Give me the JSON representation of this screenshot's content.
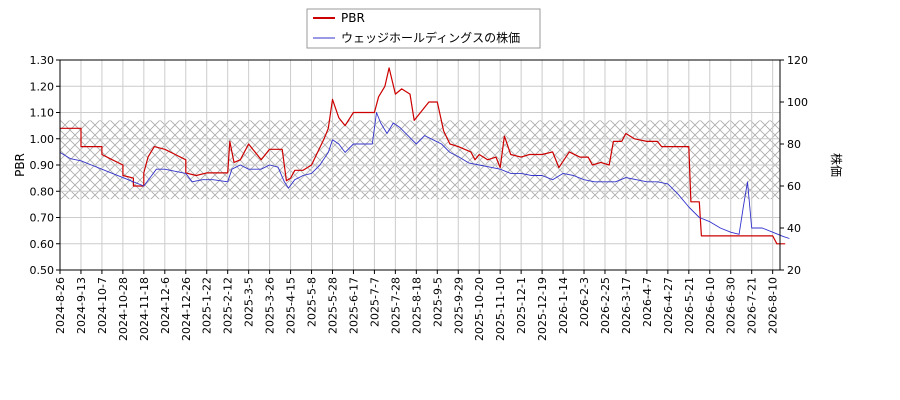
{
  "chart_data": {
    "type": "line",
    "legend": {
      "placement": "top-center",
      "entries": [
        {
          "name": "PBR",
          "color": "#cc0000"
        },
        {
          "name": "ウェッジホールディングスの株価",
          "color": "#3333cc"
        }
      ]
    },
    "y_left": {
      "label": "PBR",
      "ylim": [
        0.5,
        1.3
      ],
      "ticks": [
        "0.50",
        "0.60",
        "0.70",
        "0.80",
        "0.90",
        "1.00",
        "1.10",
        "1.20",
        "1.30"
      ]
    },
    "y_right": {
      "label": "株価",
      "ylim": [
        20,
        120
      ],
      "ticks": [
        "20",
        "40",
        "60",
        "80",
        "100",
        "120"
      ]
    },
    "x_ticks": [
      "2024-8-26",
      "2024-9-13",
      "2024-10-7",
      "2024-10-28",
      "2024-11-18",
      "2024-12-6",
      "2024-12-26",
      "2025-1-22",
      "2025-2-12",
      "2025-3-5",
      "2025-3-26",
      "2025-4-15",
      "2025-5-8",
      "2025-5-28",
      "2025-6-17",
      "2025-7-7",
      "2025-7-28",
      "2025-8-18",
      "2025-9-5",
      "2025-9-29",
      "2025-10-20",
      "2025-11-10",
      "2025-12-1",
      "2025-12-19",
      "2026-1-14",
      "2026-2-3",
      "2026-2-25",
      "2026-3-17",
      "2026-4-7",
      "2026-4-27",
      "2026-5-21",
      "2026-6-10",
      "2026-6-30",
      "2026-7-21",
      "2026-8-10"
    ],
    "grid": true,
    "band": {
      "axis": "left",
      "range": [
        0.77,
        1.07
      ],
      "pattern": "crosshatch"
    },
    "series": [
      {
        "name": "PBR",
        "axis": "left",
        "color": "#cc0000",
        "points": [
          [
            0,
            1.04
          ],
          [
            1,
            1.04
          ],
          [
            1,
            0.97
          ],
          [
            2,
            0.97
          ],
          [
            2,
            0.94
          ],
          [
            2.5,
            0.92
          ],
          [
            3,
            0.9
          ],
          [
            3,
            0.86
          ],
          [
            3.5,
            0.85
          ],
          [
            3.5,
            0.82
          ],
          [
            4,
            0.82
          ],
          [
            4,
            0.87
          ],
          [
            4.2,
            0.93
          ],
          [
            4.5,
            0.97
          ],
          [
            5,
            0.96
          ],
          [
            5.5,
            0.94
          ],
          [
            6,
            0.92
          ],
          [
            6,
            0.87
          ],
          [
            6.5,
            0.86
          ],
          [
            7,
            0.87
          ],
          [
            7.5,
            0.87
          ],
          [
            8,
            0.87
          ],
          [
            8.1,
            0.99
          ],
          [
            8.3,
            0.91
          ],
          [
            8.6,
            0.92
          ],
          [
            9,
            0.98
          ],
          [
            9.6,
            0.92
          ],
          [
            10,
            0.96
          ],
          [
            10.6,
            0.96
          ],
          [
            10.8,
            0.84
          ],
          [
            11,
            0.85
          ],
          [
            11.2,
            0.88
          ],
          [
            11.6,
            0.88
          ],
          [
            12,
            0.9
          ],
          [
            12.6,
            1.0
          ],
          [
            12.8,
            1.04
          ],
          [
            13,
            1.15
          ],
          [
            13.3,
            1.08
          ],
          [
            13.6,
            1.05
          ],
          [
            14,
            1.1
          ],
          [
            15,
            1.1
          ],
          [
            15.2,
            1.16
          ],
          [
            15.5,
            1.2
          ],
          [
            15.7,
            1.27
          ],
          [
            16,
            1.17
          ],
          [
            16.3,
            1.19
          ],
          [
            16.7,
            1.17
          ],
          [
            16.9,
            1.07
          ],
          [
            17.2,
            1.1
          ],
          [
            17.6,
            1.14
          ],
          [
            18,
            1.14
          ],
          [
            18.3,
            1.03
          ],
          [
            18.6,
            0.98
          ],
          [
            19,
            0.97
          ],
          [
            19.6,
            0.95
          ],
          [
            19.8,
            0.92
          ],
          [
            20,
            0.94
          ],
          [
            20.4,
            0.92
          ],
          [
            20.8,
            0.93
          ],
          [
            21,
            0.89
          ],
          [
            21.2,
            1.01
          ],
          [
            21.5,
            0.94
          ],
          [
            22,
            0.93
          ],
          [
            22.4,
            0.94
          ],
          [
            23,
            0.94
          ],
          [
            23.5,
            0.95
          ],
          [
            23.8,
            0.89
          ],
          [
            24.3,
            0.95
          ],
          [
            24.8,
            0.93
          ],
          [
            25.2,
            0.93
          ],
          [
            25.4,
            0.9
          ],
          [
            25.8,
            0.91
          ],
          [
            26.2,
            0.9
          ],
          [
            26.4,
            0.99
          ],
          [
            26.8,
            0.99
          ],
          [
            27,
            1.02
          ],
          [
            27.4,
            1.0
          ],
          [
            28,
            0.99
          ],
          [
            28.5,
            0.99
          ],
          [
            28.7,
            0.97
          ],
          [
            29,
            0.97
          ],
          [
            30,
            0.97
          ],
          [
            30.1,
            0.76
          ],
          [
            30.5,
            0.76
          ],
          [
            30.6,
            0.63
          ],
          [
            32,
            0.63
          ],
          [
            33,
            0.63
          ],
          [
            34,
            0.63
          ],
          [
            34.2,
            0.6
          ],
          [
            34.6,
            0.6
          ]
        ]
      },
      {
        "name": "ウェッジホールディングスの株価",
        "axis": "right",
        "color": "#3333cc",
        "points": [
          [
            0,
            76
          ],
          [
            0.5,
            73
          ],
          [
            1,
            72
          ],
          [
            1.5,
            70
          ],
          [
            2,
            68
          ],
          [
            2.5,
            66
          ],
          [
            3,
            64
          ],
          [
            3.5,
            62
          ],
          [
            4,
            60
          ],
          [
            4.3,
            64
          ],
          [
            4.6,
            68
          ],
          [
            5,
            68
          ],
          [
            5.5,
            67
          ],
          [
            6,
            66
          ],
          [
            6.3,
            62
          ],
          [
            6.8,
            63
          ],
          [
            7.3,
            63
          ],
          [
            8,
            62
          ],
          [
            8.2,
            68
          ],
          [
            8.6,
            70
          ],
          [
            9,
            68
          ],
          [
            9.6,
            68
          ],
          [
            10,
            70
          ],
          [
            10.4,
            69
          ],
          [
            10.7,
            62
          ],
          [
            10.9,
            59
          ],
          [
            11.2,
            63
          ],
          [
            11.6,
            65
          ],
          [
            12,
            66
          ],
          [
            12.4,
            70
          ],
          [
            12.8,
            76
          ],
          [
            13,
            82
          ],
          [
            13.3,
            80
          ],
          [
            13.6,
            76
          ],
          [
            14,
            80
          ],
          [
            14.5,
            80
          ],
          [
            14.9,
            80
          ],
          [
            15.1,
            95
          ],
          [
            15.3,
            90
          ],
          [
            15.6,
            85
          ],
          [
            15.9,
            90
          ],
          [
            16.2,
            88
          ],
          [
            16.6,
            84
          ],
          [
            17,
            80
          ],
          [
            17.4,
            84
          ],
          [
            17.8,
            82
          ],
          [
            18.2,
            80
          ],
          [
            18.6,
            76
          ],
          [
            19,
            74
          ],
          [
            19.5,
            71
          ],
          [
            20,
            70
          ],
          [
            20.5,
            69
          ],
          [
            21,
            68
          ],
          [
            21.5,
            66
          ],
          [
            22,
            66
          ],
          [
            22.5,
            65
          ],
          [
            23,
            65
          ],
          [
            23.5,
            63
          ],
          [
            24,
            66
          ],
          [
            24.5,
            65
          ],
          [
            25,
            63
          ],
          [
            25.5,
            62
          ],
          [
            26,
            62
          ],
          [
            26.5,
            62
          ],
          [
            27,
            64
          ],
          [
            27.5,
            63
          ],
          [
            28,
            62
          ],
          [
            28.5,
            62
          ],
          [
            29,
            61
          ],
          [
            29.5,
            56
          ],
          [
            30,
            50
          ],
          [
            30.5,
            45
          ],
          [
            31,
            43
          ],
          [
            31.5,
            40
          ],
          [
            32,
            38
          ],
          [
            32.4,
            37
          ],
          [
            32.6,
            50
          ],
          [
            32.8,
            62
          ],
          [
            33,
            40
          ],
          [
            33.5,
            40
          ],
          [
            34,
            38
          ],
          [
            34.5,
            36
          ],
          [
            34.8,
            35
          ]
        ]
      }
    ]
  }
}
